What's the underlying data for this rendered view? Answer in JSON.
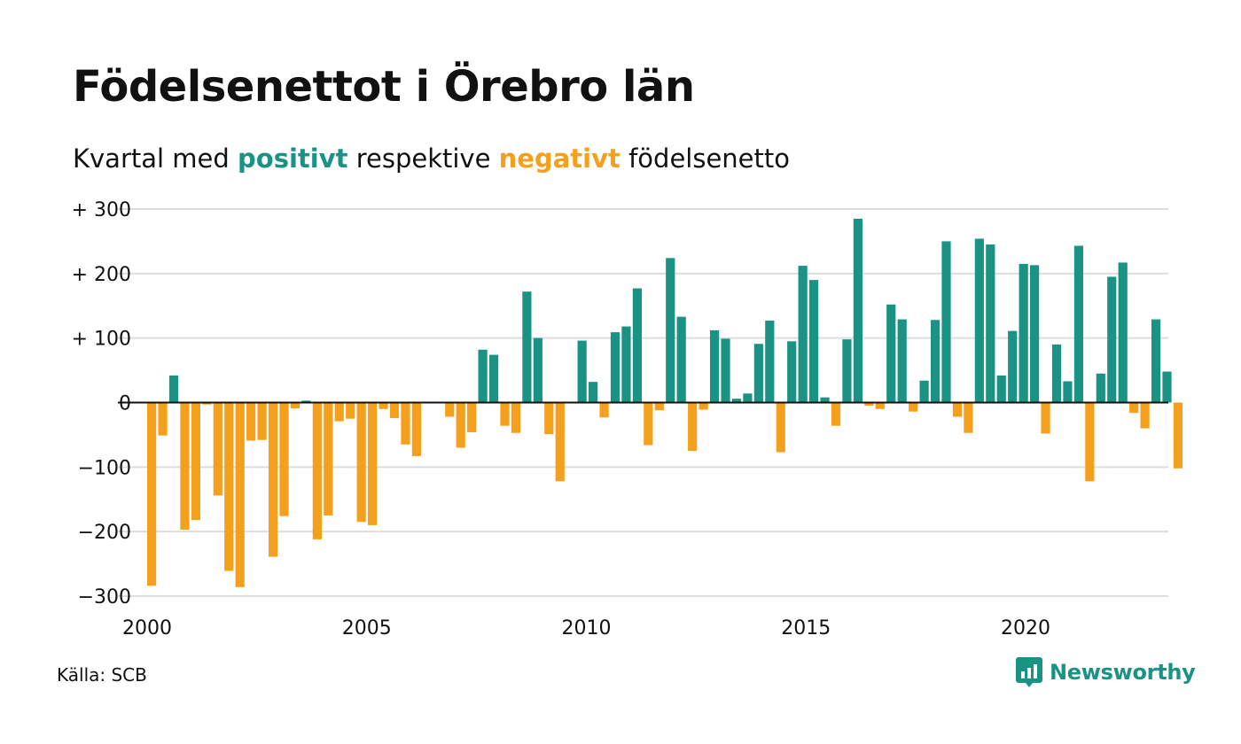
{
  "title": "Födelsenettot i Örebro län",
  "subtitle": {
    "prefix": "Kvartal med ",
    "positive_word": "positivt",
    "middle": " respektive ",
    "negative_word": "negativt",
    "suffix": " födelsenetto"
  },
  "source": "Källa: SCB",
  "brand": {
    "name": "Newsworthy",
    "icon": "newsworthy-logo-icon"
  },
  "colors": {
    "positive": "#1a9384",
    "negative": "#f5a01c",
    "grid": "#dddddd",
    "zero_line": "#111111"
  },
  "chart_data": {
    "type": "bar",
    "title": "Födelsenettot i Örebro län",
    "subtitle": "Kvartal med positivt respektive negativt födelsenetto",
    "xlabel": "",
    "ylabel": "",
    "x_start": 2000.0,
    "x_step": 0.25,
    "xlim": [
      2000,
      2023.25
    ],
    "ylim": [
      -300,
      300
    ],
    "grid": true,
    "y_ticks": [
      {
        "value": 300,
        "label": "+ 300"
      },
      {
        "value": 200,
        "label": "+ 200"
      },
      {
        "value": 100,
        "label": "+ 100"
      },
      {
        "value": 0,
        "label": "0"
      },
      {
        "value": -100,
        "label": "−100"
      },
      {
        "value": -200,
        "label": "−200"
      },
      {
        "value": -300,
        "label": "−300"
      }
    ],
    "x_ticks": [
      {
        "value": 2000,
        "label": "2000"
      },
      {
        "value": 2005,
        "label": "2005"
      },
      {
        "value": 2010,
        "label": "2010"
      },
      {
        "value": 2015,
        "label": "2015"
      },
      {
        "value": 2020,
        "label": "2020"
      }
    ],
    "values": [
      -284,
      -51,
      42,
      -197,
      -182,
      -3,
      -144,
      -261,
      -286,
      -59,
      -58,
      -239,
      -176,
      -9,
      3,
      -212,
      -175,
      -29,
      -25,
      -185,
      -190,
      -10,
      -24,
      -65,
      -83,
      0,
      0,
      -22,
      -70,
      -46,
      82,
      74,
      -36,
      -47,
      172,
      100,
      -49,
      -122,
      0,
      96,
      32,
      -23,
      109,
      118,
      177,
      -66,
      -12,
      224,
      133,
      -75,
      -11,
      112,
      99,
      6,
      14,
      91,
      127,
      -77,
      95,
      212,
      190,
      8,
      -36,
      98,
      285,
      -5,
      -10,
      152,
      129,
      -14,
      34,
      128,
      250,
      -22,
      -47,
      254,
      245,
      42,
      111,
      215,
      213,
      -48,
      90,
      33,
      243,
      -122,
      45,
      195,
      217,
      -16,
      -40,
      129,
      48,
      -102
    ]
  }
}
